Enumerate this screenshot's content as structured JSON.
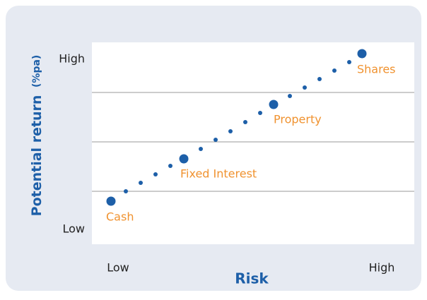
{
  "y_axis": {
    "title": "Potential return",
    "unit": "(%pa)",
    "high": "High",
    "low": "Low"
  },
  "x_axis": {
    "title": "Risk",
    "low": "Low",
    "high": "High"
  },
  "points": [
    {
      "label": "Cash"
    },
    {
      "label": "Fixed Interest"
    },
    {
      "label": "Property"
    },
    {
      "label": "Shares"
    }
  ]
}
